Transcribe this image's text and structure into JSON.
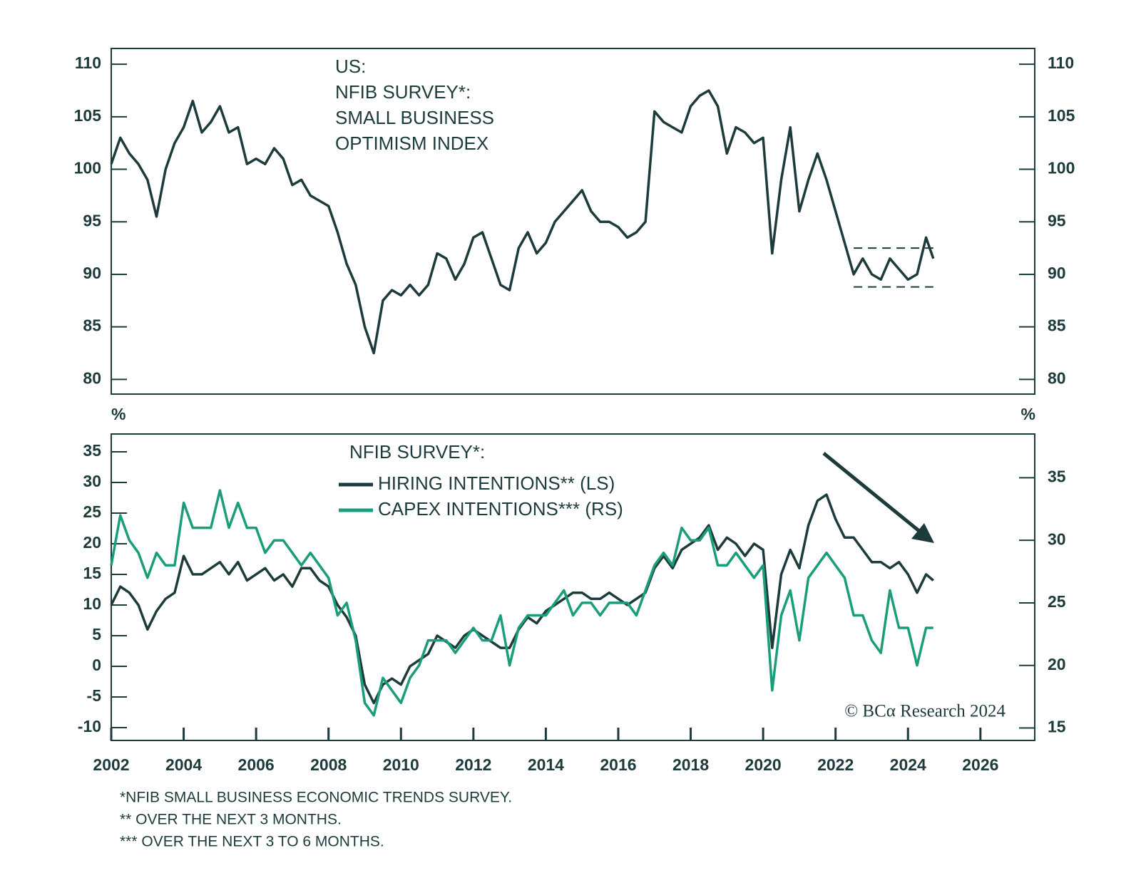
{
  "chart_data": [
    {
      "type": "line",
      "title": [
        "US:",
        "NFIB SURVEY*:",
        "SMALL BUSINESS",
        "OPTIMISM INDEX"
      ],
      "xlim": [
        2002,
        2027.5
      ],
      "ylim": [
        78.6,
        111.5
      ],
      "yticks": [
        80,
        85,
        90,
        95,
        100,
        105,
        110
      ],
      "x": [
        2002.0,
        2002.25,
        2002.5,
        2002.75,
        2003.0,
        2003.25,
        2003.5,
        2003.75,
        2004.0,
        2004.25,
        2004.5,
        2004.75,
        2005.0,
        2005.25,
        2005.5,
        2005.75,
        2006.0,
        2006.25,
        2006.5,
        2006.75,
        2007.0,
        2007.25,
        2007.5,
        2007.75,
        2008.0,
        2008.25,
        2008.5,
        2008.75,
        2009.0,
        2009.25,
        2009.5,
        2009.75,
        2010.0,
        2010.25,
        2010.5,
        2010.75,
        2011.0,
        2011.25,
        2011.5,
        2011.75,
        2012.0,
        2012.25,
        2012.5,
        2012.75,
        2013.0,
        2013.25,
        2013.5,
        2013.75,
        2014.0,
        2014.25,
        2014.5,
        2014.75,
        2015.0,
        2015.25,
        2015.5,
        2015.75,
        2016.0,
        2016.25,
        2016.5,
        2016.75,
        2017.0,
        2017.25,
        2017.5,
        2017.75,
        2018.0,
        2018.25,
        2018.5,
        2018.75,
        2019.0,
        2019.25,
        2019.5,
        2019.75,
        2020.0,
        2020.25,
        2020.5,
        2020.75,
        2021.0,
        2021.25,
        2021.5,
        2021.75,
        2022.0,
        2022.25,
        2022.5,
        2022.75,
        2023.0,
        2023.25,
        2023.5,
        2023.75,
        2024.0,
        2024.25,
        2024.5,
        2024.7
      ],
      "series": [
        {
          "name": "SMALL BUSINESS OPTIMISM INDEX",
          "color": "#1d3b3b",
          "values": [
            100.5,
            103,
            101.5,
            100.5,
            99,
            95.5,
            100,
            102.5,
            104,
            106.5,
            103.5,
            104.5,
            106,
            103.5,
            104,
            100.5,
            101,
            100.5,
            102,
            101,
            98.5,
            99,
            97.5,
            97,
            96.5,
            94,
            91,
            89,
            85,
            82.5,
            87.5,
            88.5,
            88,
            89,
            88,
            89,
            92,
            91.5,
            89.5,
            91,
            93.5,
            94,
            91.5,
            89,
            88.5,
            92.5,
            94,
            92,
            93,
            95,
            96,
            97,
            98,
            96,
            95,
            95,
            94.5,
            93.5,
            94,
            95,
            105.5,
            104.5,
            104,
            103.5,
            106,
            107,
            107.5,
            106,
            101.5,
            104,
            103.5,
            102.5,
            103,
            92,
            99,
            104,
            96,
            99,
            101.5,
            99,
            96,
            93,
            90,
            91.5,
            90,
            89.5,
            91.5,
            90.5,
            89.5,
            90,
            93.5,
            91.5
          ]
        }
      ],
      "range_lines": [
        {
          "x": [
            2022.5,
            2024.7
          ],
          "y": 92.5
        },
        {
          "x": [
            2022.5,
            2024.7
          ],
          "y": 88.8
        }
      ]
    },
    {
      "type": "line",
      "title": "NFIB SURVEY*:",
      "y_unit": "%",
      "y2_unit": "%",
      "xlim": [
        2002,
        2027.5
      ],
      "xticks": [
        2002,
        2004,
        2006,
        2008,
        2010,
        2012,
        2014,
        2016,
        2018,
        2020,
        2022,
        2024,
        2026
      ],
      "ylim": [
        -12.1,
        37.9
      ],
      "yticks": [
        -10,
        -5,
        0,
        5,
        10,
        15,
        20,
        25,
        30,
        35
      ],
      "y2lim": [
        14.0,
        38.5
      ],
      "y2ticks": [
        15,
        20,
        25,
        30,
        35
      ],
      "x": [
        2002.0,
        2002.25,
        2002.5,
        2002.75,
        2003.0,
        2003.25,
        2003.5,
        2003.75,
        2004.0,
        2004.25,
        2004.5,
        2004.75,
        2005.0,
        2005.25,
        2005.5,
        2005.75,
        2006.0,
        2006.25,
        2006.5,
        2006.75,
        2007.0,
        2007.25,
        2007.5,
        2007.75,
        2008.0,
        2008.25,
        2008.5,
        2008.75,
        2009.0,
        2009.25,
        2009.5,
        2009.75,
        2010.0,
        2010.25,
        2010.5,
        2010.75,
        2011.0,
        2011.25,
        2011.5,
        2011.75,
        2012.0,
        2012.25,
        2012.5,
        2012.75,
        2013.0,
        2013.25,
        2013.5,
        2013.75,
        2014.0,
        2014.25,
        2014.5,
        2014.75,
        2015.0,
        2015.25,
        2015.5,
        2015.75,
        2016.0,
        2016.25,
        2016.5,
        2016.75,
        2017.0,
        2017.25,
        2017.5,
        2017.75,
        2018.0,
        2018.25,
        2018.5,
        2018.75,
        2019.0,
        2019.25,
        2019.5,
        2019.75,
        2020.0,
        2020.25,
        2020.5,
        2020.75,
        2021.0,
        2021.25,
        2021.5,
        2021.75,
        2022.0,
        2022.25,
        2022.5,
        2022.75,
        2023.0,
        2023.25,
        2023.5,
        2023.75,
        2024.0,
        2024.25,
        2024.5,
        2024.7
      ],
      "series": [
        {
          "name": "HIRING INTENTIONS** (LS)",
          "color": "#1d3b3b",
          "values": [
            10,
            13,
            12,
            10,
            6,
            9,
            11,
            12,
            18,
            15,
            15,
            16,
            17,
            15,
            17,
            14,
            15,
            16,
            14,
            15,
            13,
            16,
            16,
            14,
            13,
            10,
            8,
            5,
            -3,
            -6,
            -3,
            -2,
            -3,
            0,
            1,
            2,
            5,
            4,
            3,
            5,
            6,
            5,
            4,
            3,
            3,
            6,
            8,
            7,
            9,
            10,
            11,
            12,
            12,
            11,
            11,
            12,
            11,
            10,
            11,
            12,
            16,
            18,
            16,
            19,
            20,
            21,
            23,
            19,
            21,
            20,
            18,
            20,
            19,
            3,
            15,
            19,
            16,
            23,
            27,
            28,
            24,
            21,
            21,
            19,
            17,
            17,
            16,
            17,
            15,
            12,
            15,
            14
          ]
        },
        {
          "name": "CAPEX INTENTIONS*** (RS)",
          "color": "#1a9e7a",
          "axis": "y2",
          "values": [
            28,
            32,
            30,
            29,
            27,
            29,
            28,
            28,
            33,
            31,
            31,
            31,
            34,
            31,
            33,
            31,
            31,
            29,
            30,
            30,
            29,
            28,
            29,
            28,
            27,
            24,
            25,
            22,
            17,
            16,
            19,
            18,
            17,
            19,
            20,
            22,
            22,
            22,
            21,
            22,
            23,
            22,
            22,
            24,
            20,
            23,
            24,
            24,
            24,
            25,
            26,
            24,
            25,
            25,
            24,
            25,
            25,
            25,
            24,
            26,
            28,
            29,
            28,
            31,
            30,
            30,
            31,
            28,
            28,
            29,
            28,
            27,
            28,
            18,
            24,
            26,
            22,
            27,
            28,
            29,
            28,
            27,
            24,
            24,
            22,
            21,
            26,
            23,
            23,
            20,
            23,
            23
          ]
        }
      ],
      "source": "© BCα Research 2024"
    }
  ],
  "footnotes": [
    "*NFIB SMALL BUSINESS ECONOMIC TRENDS SURVEY.",
    "** OVER THE NEXT 3 MONTHS.",
    "*** OVER THE NEXT 3 TO 6 MONTHS."
  ]
}
